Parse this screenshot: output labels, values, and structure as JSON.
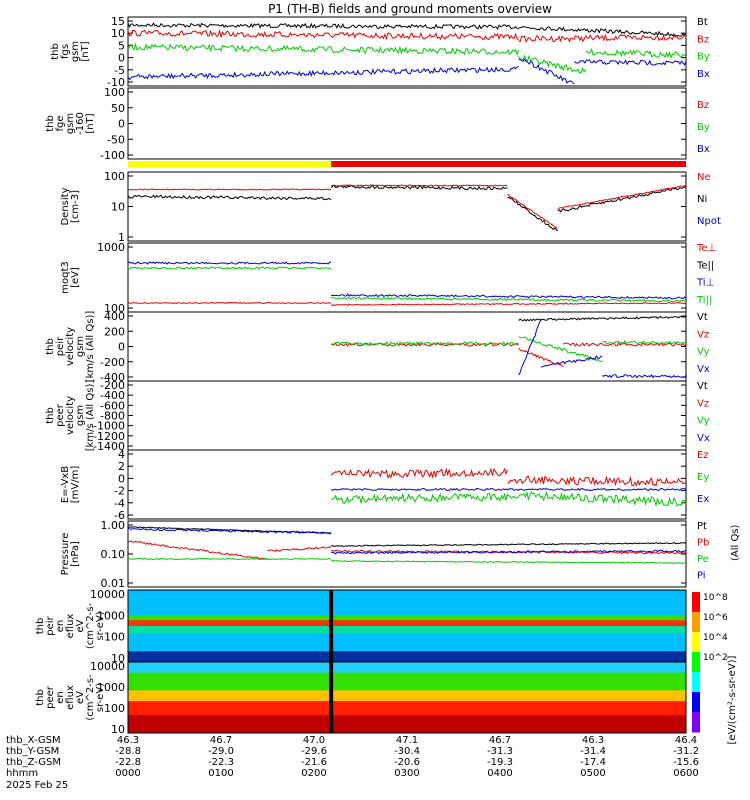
{
  "title": "P1 (TH-B) fields and ground moments overview",
  "colors": {
    "black": "#000000",
    "red": "#ee0000",
    "green": "#00cc00",
    "blue": "#0000dd",
    "yellow": "#ffff00"
  },
  "chart_data": [
    {
      "type": "line",
      "ylabel": [
        "thb",
        "fgs",
        "gsm",
        "[nT]"
      ],
      "yticks": [
        "15",
        "10",
        "5",
        "0",
        "-5",
        "-10"
      ],
      "ylim": [
        -10,
        15
      ],
      "legend": [
        {
          "name": "Bt",
          "color": "black"
        },
        {
          "name": "Bz",
          "color": "red"
        },
        {
          "name": "By",
          "color": "green"
        },
        {
          "name": "Bx",
          "color": "blue"
        }
      ]
    },
    {
      "type": "line",
      "ylabel": [
        "thb",
        "fge",
        "gsm",
        "-160",
        "[nT]"
      ],
      "yticks": [
        "100",
        "50",
        "0",
        "-50",
        "-100"
      ],
      "ylim": [
        -120,
        100
      ],
      "legend": [
        {
          "name": "Bz",
          "color": "red"
        },
        {
          "name": "By",
          "color": "green"
        },
        {
          "name": "Bx",
          "color": "blue"
        }
      ]
    },
    {
      "type": "line",
      "ylabel": [
        "Density",
        "[cm-3]"
      ],
      "yticks": [
        "100",
        "10",
        "1"
      ],
      "log": true,
      "legend": [
        {
          "name": "Ne",
          "color": "red"
        },
        {
          "name": "Ni",
          "color": "black"
        },
        {
          "name": "Npot",
          "color": "blue"
        }
      ]
    },
    {
      "type": "line",
      "ylabel": [
        "moqt3",
        "[eV]"
      ],
      "yticks": [
        "1000",
        "100"
      ],
      "log": true,
      "legend": [
        {
          "name": "Te⊥",
          "color": "red"
        },
        {
          "name": "Te||",
          "color": "black"
        },
        {
          "name": "Ti⊥",
          "color": "blue"
        },
        {
          "name": "Ti||",
          "color": "green"
        }
      ]
    },
    {
      "type": "line",
      "ylabel": [
        "thb",
        "peir",
        "velocity",
        "gsm",
        "[km/s (All Qs)]"
      ],
      "yticks": [
        "400",
        "200",
        "0",
        "-200",
        "-400"
      ],
      "ylim": [
        -400,
        400
      ],
      "legend": [
        {
          "name": "Vt",
          "color": "black"
        },
        {
          "name": "Vz",
          "color": "red"
        },
        {
          "name": "Vy",
          "color": "green"
        },
        {
          "name": "Vx",
          "color": "blue"
        }
      ]
    },
    {
      "type": "line",
      "ylabel": [
        "thb",
        "peer",
        "velocity",
        "gsm",
        "[km/s (All Qs)]"
      ],
      "yticks": [
        "-200",
        "-400",
        "-600",
        "-800",
        "-1000",
        "-1200",
        "-1400"
      ],
      "ylim": [
        -1500,
        -150
      ],
      "legend": [
        {
          "name": "Vt",
          "color": "black"
        },
        {
          "name": "Vz",
          "color": "red"
        },
        {
          "name": "Vy",
          "color": "green"
        },
        {
          "name": "Vx",
          "color": "blue"
        }
      ]
    },
    {
      "type": "line",
      "ylabel": [
        "E=-VxB",
        "[mV/m]"
      ],
      "yticks": [
        "4",
        "2",
        "0",
        "-2",
        "-4",
        "-6"
      ],
      "ylim": [
        -6,
        4
      ],
      "legend": [
        {
          "name": "Ez",
          "color": "red"
        },
        {
          "name": "Ey",
          "color": "green"
        },
        {
          "name": "Ex",
          "color": "blue"
        }
      ]
    },
    {
      "type": "line",
      "ylabel": [
        "Pressure",
        "[nPa]"
      ],
      "yticks": [
        "1.00",
        "0.10",
        "0.01"
      ],
      "log": true,
      "legend": [
        {
          "name": "Pt",
          "color": "black"
        },
        {
          "name": "Pb",
          "color": "red"
        },
        {
          "name": "Pe",
          "color": "green"
        },
        {
          "name": "Pi",
          "color": "blue"
        }
      ],
      "units_right": "(All Qs)"
    },
    {
      "type": "heatmap",
      "ylabel": [
        "thb",
        "peir",
        "en",
        "eflux",
        "eV",
        "(cm^2-s-",
        "sr-eV)"
      ],
      "yticks": [
        "10000",
        "1000",
        "100",
        "10"
      ],
      "log": true
    },
    {
      "type": "heatmap",
      "ylabel": [
        "thb",
        "peer",
        "en",
        "eflux",
        "eV",
        "(cm^2-s-",
        "sr-eV)"
      ],
      "yticks": [
        "10000",
        "1000",
        "100",
        "10"
      ],
      "log": true
    }
  ],
  "colorbar": {
    "ticks": [
      "10^8",
      "10^6",
      "10^4",
      "10^2"
    ],
    "label": "[eV/(cm²-s-sr-eV)]",
    "label2": "[eV/(cm²-s-sr-eV)]"
  },
  "xaxis": {
    "rows": [
      {
        "label": "thb_X-GSM",
        "values": [
          "46.3",
          "46.7",
          "47.0",
          "47.1",
          "46.7",
          "46.3",
          "46.4"
        ]
      },
      {
        "label": "thb_Y-GSM",
        "values": [
          "-28.8",
          "-29.0",
          "-29.6",
          "-30.4",
          "-31.3",
          "-31.4",
          "-31.2"
        ]
      },
      {
        "label": "thb_Z-GSM",
        "values": [
          "-22.8",
          "-22.3",
          "-21.6",
          "-20.6",
          "-19.3",
          "-17.4",
          "-15.6"
        ]
      },
      {
        "label": "hhmm",
        "values": [
          "0000",
          "0100",
          "0200",
          "0300",
          "0400",
          "0500",
          "0600"
        ]
      }
    ],
    "date": "2025 Feb 25"
  }
}
